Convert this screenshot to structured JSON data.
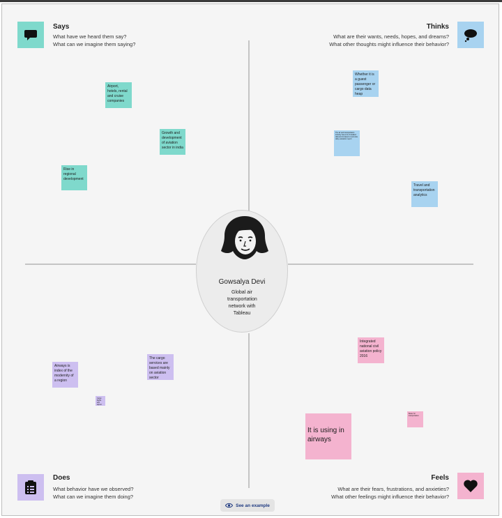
{
  "quadrants": {
    "says": {
      "title": "Says",
      "line1": "What have we heard them say?",
      "line2": "What can we imagine them saying?",
      "icon": "speech-bubble-icon",
      "color": "#7fd9cc"
    },
    "thinks": {
      "title": "Thinks",
      "line1": "What are their wants, needs, hopes, and dreams?",
      "line2": "What other thoughts might influence their behavior?",
      "icon": "thought-bubble-icon",
      "color": "#a8d3f0"
    },
    "does": {
      "title": "Does",
      "line1": "What behavior have we observed?",
      "line2": "What can we imagine them doing?",
      "icon": "clipboard-icon",
      "color": "#cdbff0"
    },
    "feels": {
      "title": "Feels",
      "line1": "What are their fears, frustrations, and anxieties?",
      "line2": "What other feelings might influence their behavior?",
      "icon": "heart-icon",
      "color": "#f4b3cf"
    }
  },
  "persona": {
    "name": "Gowsalya Devi",
    "description": "Global air transportation network with Tableau"
  },
  "notes": {
    "says": [
      "Airport, hotels, rental and cruise companies",
      "Growth and development of aviation sector in india",
      "Rise in regional development"
    ],
    "thinks": [
      "Whether it is a guest passenger or cargo data heap",
      "The air and transportation industry has a lot of detailed data and is based on accurate daily evaluation report",
      "Travel and transportation analytics"
    ],
    "does": [
      "Airways is index of the modernity of a region",
      "The cargo services are based mainly on aviation sector",
      "Cargo flights and airport"
    ],
    "feels": [
      "Integrated national civil aviation policy 2016",
      "It is using in airways",
      "Better for transportation"
    ]
  },
  "footer": {
    "example_label": "See an example",
    "icon": "eye-icon"
  }
}
